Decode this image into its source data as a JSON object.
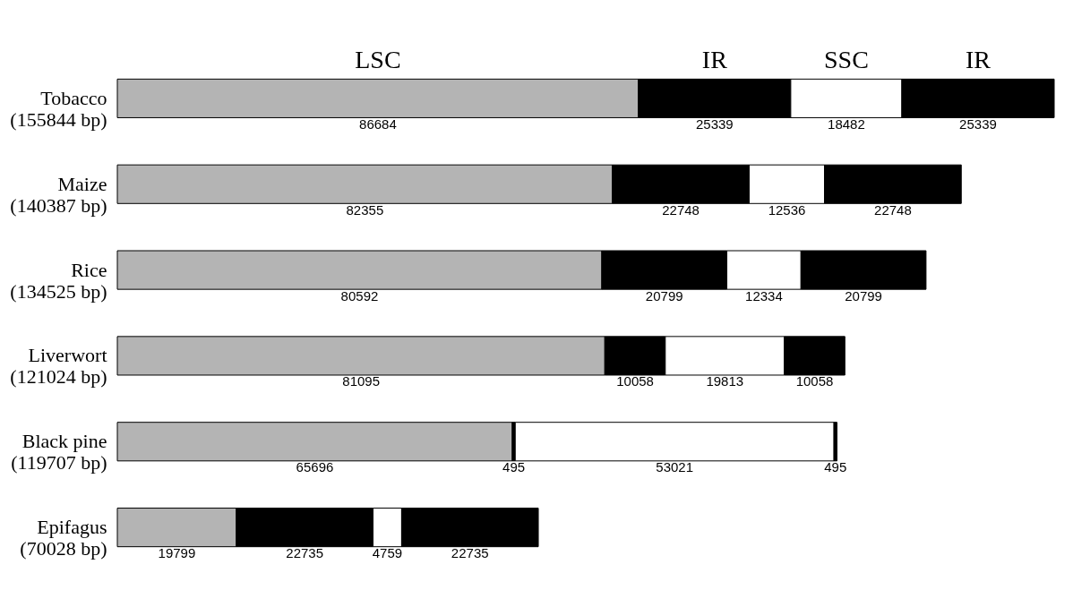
{
  "chart_data": {
    "type": "bar",
    "orientation": "horizontal",
    "stacked": true,
    "data_labels": true,
    "categories": [
      "Tobacco (155844 bp)",
      "Maize (140387 bp)",
      "Rice (134525 bp)",
      "Liverwort (121024 bp)",
      "Black pine (119707 bp)",
      "Epifagus (70028 bp)"
    ],
    "series": [
      {
        "name": "LSC",
        "color": "#b4b4b4",
        "values": [
          86684,
          82355,
          80592,
          81095,
          65696,
          19799
        ]
      },
      {
        "name": "IR",
        "color": "#000000",
        "values": [
          25339,
          22748,
          20799,
          10058,
          495,
          22735
        ]
      },
      {
        "name": "SSC",
        "color": "#ffffff",
        "values": [
          18482,
          12536,
          12334,
          19813,
          53021,
          4759
        ]
      },
      {
        "name": "IR",
        "color": "#000000",
        "values": [
          25339,
          22748,
          20799,
          10058,
          495,
          22735
        ]
      }
    ]
  }
}
